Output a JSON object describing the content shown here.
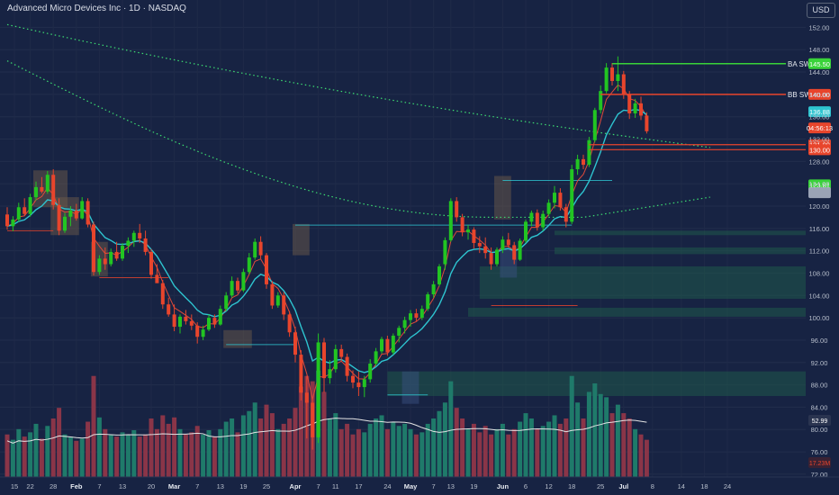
{
  "header": {
    "symbol_title": "Advanced Micro Devices Inc · 1D · NASDAQ",
    "currency_label": "USD"
  },
  "chart_data": {
    "type": "candlestick",
    "price_axis": {
      "ticks": [
        "152.00",
        "148.00",
        "144.00",
        "140.00",
        "136.00",
        "132.00",
        "128.00",
        "124.00",
        "120.00",
        "116.00",
        "112.00",
        "108.00",
        "104.00",
        "100.00",
        "96.00",
        "92.00",
        "88.00",
        "84.00",
        "80.00",
        "76.00",
        "72.00"
      ],
      "tick_values": [
        152,
        148,
        144,
        140,
        136,
        132,
        128,
        124,
        120,
        116,
        112,
        108,
        104,
        100,
        96,
        92,
        88,
        84,
        80,
        76,
        72
      ],
      "range": [
        71.5,
        154
      ]
    },
    "date_axis": {
      "labels": [
        "15",
        "22",
        "28",
        "Feb",
        "7",
        "13",
        "20",
        "Mar",
        "7",
        "13",
        "19",
        "25",
        "Apr",
        "7",
        "11",
        "17",
        "24",
        "May",
        "7",
        "13",
        "19",
        "Jun",
        "6",
        "12",
        "18",
        "25",
        "Jul",
        "8",
        "14",
        "18",
        "24"
      ],
      "label_bar_index": [
        -1,
        4,
        8,
        12,
        16,
        20,
        25,
        29,
        33,
        37,
        41,
        45,
        50,
        54,
        57,
        61,
        66,
        70,
        74,
        77,
        81,
        86,
        90,
        94,
        98,
        103,
        107,
        112,
        117,
        121,
        125
      ],
      "bold_labels": [
        "Feb",
        "Mar",
        "Apr",
        "May",
        "Jun",
        "Jul"
      ]
    },
    "candles": {
      "fields": [
        "open",
        "high",
        "low",
        "close",
        "volume_millions"
      ],
      "bars": [
        [
          118.5,
          119.8,
          115.8,
          116.4,
          40
        ],
        [
          116.4,
          118.2,
          115.5,
          117.6,
          35
        ],
        [
          117.6,
          120.6,
          117.2,
          119.8,
          45
        ],
        [
          119.8,
          121.4,
          118.2,
          118.6,
          38
        ],
        [
          118.6,
          122.2,
          118.1,
          121.6,
          42
        ],
        [
          121.6,
          124.4,
          121.0,
          123.4,
          50
        ],
        [
          123.4,
          125.2,
          122.3,
          122.6,
          36
        ],
        [
          122.6,
          126.3,
          122.2,
          125.6,
          48
        ],
        [
          125.6,
          126.6,
          119.4,
          120.2,
          55
        ],
        [
          120.2,
          121.4,
          114.8,
          115.6,
          65
        ],
        [
          115.6,
          118.8,
          115.2,
          118.1,
          40
        ],
        [
          118.1,
          120.0,
          116.4,
          119.2,
          38
        ],
        [
          119.2,
          120.4,
          117.4,
          117.8,
          34
        ],
        [
          117.8,
          121.6,
          117.6,
          120.9,
          36
        ],
        [
          120.9,
          121.4,
          116.2,
          116.7,
          52
        ],
        [
          116.7,
          117.2,
          107.6,
          108.2,
          95
        ],
        [
          108.2,
          111.2,
          107.7,
          110.6,
          56
        ],
        [
          110.6,
          112.6,
          108.6,
          109.6,
          45
        ],
        [
          109.6,
          112.4,
          109.2,
          111.8,
          40
        ],
        [
          111.8,
          113.6,
          110.2,
          110.6,
          38
        ],
        [
          110.6,
          113.4,
          110.2,
          112.9,
          42
        ],
        [
          112.9,
          114.4,
          111.6,
          113.8,
          40
        ],
        [
          113.8,
          115.6,
          112.7,
          115.2,
          44
        ],
        [
          115.2,
          116.8,
          113.4,
          114.2,
          38
        ],
        [
          114.2,
          115.6,
          111.2,
          111.8,
          40
        ],
        [
          111.8,
          112.3,
          107.0,
          107.7,
          55
        ],
        [
          107.7,
          109.6,
          106.4,
          106.2,
          45
        ],
        [
          106.2,
          106.8,
          101.6,
          102.4,
          58
        ],
        [
          102.4,
          103.6,
          100.2,
          100.6,
          50
        ],
        [
          100.6,
          102.4,
          97.6,
          98.4,
          56
        ],
        [
          98.4,
          100.6,
          97.2,
          100.2,
          45
        ],
        [
          100.2,
          101.4,
          98.8,
          99.4,
          40
        ],
        [
          99.4,
          100.6,
          97.8,
          98.6,
          42
        ],
        [
          98.6,
          99.2,
          95.4,
          96.6,
          48
        ],
        [
          96.6,
          98.6,
          96.0,
          97.9,
          40
        ],
        [
          97.9,
          100.6,
          97.6,
          100.0,
          44
        ],
        [
          100.0,
          100.6,
          98.2,
          98.8,
          38
        ],
        [
          98.8,
          102.2,
          98.6,
          101.6,
          45
        ],
        [
          101.6,
          104.6,
          101.2,
          104.0,
          52
        ],
        [
          104.0,
          107.4,
          103.6,
          106.6,
          55
        ],
        [
          106.6,
          107.2,
          104.4,
          104.9,
          42
        ],
        [
          104.9,
          108.8,
          104.6,
          108.2,
          58
        ],
        [
          108.2,
          111.6,
          107.8,
          110.8,
          62
        ],
        [
          110.8,
          114.2,
          110.4,
          113.6,
          70
        ],
        [
          113.6,
          114.6,
          110.6,
          111.2,
          55
        ],
        [
          111.2,
          111.6,
          105.2,
          106.0,
          68
        ],
        [
          106.0,
          106.6,
          101.6,
          102.2,
          60
        ],
        [
          102.2,
          104.6,
          101.8,
          104.0,
          45
        ],
        [
          104.0,
          104.6,
          99.6,
          100.6,
          50
        ],
        [
          100.6,
          101.2,
          96.6,
          97.4,
          55
        ],
        [
          97.4,
          98.4,
          92.0,
          93.4,
          65
        ],
        [
          93.4,
          94.2,
          85.2,
          86.6,
          85
        ],
        [
          86.6,
          89.6,
          78.4,
          84.8,
          95
        ],
        [
          84.8,
          85.6,
          76.4,
          78.6,
          90
        ],
        [
          78.6,
          97.2,
          77.6,
          95.6,
          100
        ],
        [
          95.6,
          96.4,
          86.6,
          89.2,
          80
        ],
        [
          89.2,
          92.4,
          88.2,
          90.8,
          55
        ],
        [
          90.8,
          95.2,
          90.2,
          94.4,
          60
        ],
        [
          94.4,
          95.2,
          92.2,
          93.0,
          45
        ],
        [
          93.0,
          93.6,
          88.6,
          89.6,
          50
        ],
        [
          89.6,
          90.6,
          87.4,
          88.4,
          40
        ],
        [
          88.4,
          90.4,
          86.0,
          87.6,
          45
        ],
        [
          87.6,
          89.6,
          85.8,
          89.0,
          42
        ],
        [
          89.0,
          92.6,
          88.4,
          91.8,
          50
        ],
        [
          91.8,
          94.6,
          91.4,
          94.0,
          55
        ],
        [
          94.0,
          96.6,
          93.6,
          96.2,
          58
        ],
        [
          96.2,
          96.8,
          93.2,
          93.8,
          45
        ],
        [
          93.8,
          97.2,
          93.4,
          96.8,
          52
        ],
        [
          96.8,
          98.6,
          95.6,
          98.2,
          48
        ],
        [
          98.2,
          100.2,
          97.2,
          99.6,
          50
        ],
        [
          99.6,
          101.4,
          98.4,
          100.8,
          45
        ],
        [
          100.8,
          101.6,
          99.4,
          100.0,
          40
        ],
        [
          100.0,
          102.2,
          99.6,
          101.6,
          42
        ],
        [
          101.6,
          104.6,
          101.2,
          104.2,
          50
        ],
        [
          104.2,
          106.6,
          103.6,
          106.0,
          55
        ],
        [
          106.0,
          109.6,
          105.6,
          109.2,
          62
        ],
        [
          109.6,
          114.4,
          108.6,
          113.9,
          70
        ],
        [
          113.9,
          121.4,
          113.6,
          120.9,
          90
        ],
        [
          120.9,
          121.6,
          117.2,
          118.0,
          65
        ],
        [
          118.0,
          118.6,
          114.6,
          115.3,
          55
        ],
        [
          115.3,
          116.6,
          114.0,
          115.8,
          45
        ],
        [
          115.8,
          116.2,
          112.4,
          113.4,
          50
        ],
        [
          113.4,
          114.6,
          111.6,
          112.8,
          42
        ],
        [
          112.8,
          114.4,
          110.6,
          111.6,
          48
        ],
        [
          111.6,
          112.6,
          108.6,
          109.6,
          40
        ],
        [
          109.6,
          112.6,
          109.2,
          112.2,
          45
        ],
        [
          112.2,
          114.6,
          111.6,
          114.0,
          50
        ],
        [
          114.0,
          115.2,
          112.6,
          113.0,
          40
        ],
        [
          113.0,
          113.6,
          109.6,
          110.4,
          45
        ],
        [
          110.4,
          114.2,
          110.2,
          113.8,
          52
        ],
        [
          113.8,
          117.6,
          113.4,
          117.2,
          60
        ],
        [
          117.2,
          119.2,
          116.4,
          118.8,
          55
        ],
        [
          118.8,
          119.4,
          115.6,
          116.2,
          45
        ],
        [
          116.2,
          119.2,
          115.6,
          118.6,
          48
        ],
        [
          118.6,
          121.2,
          118.2,
          120.6,
          52
        ],
        [
          120.6,
          123.6,
          119.6,
          122.4,
          58
        ],
        [
          122.4,
          123.2,
          119.2,
          119.8,
          50
        ],
        [
          119.8,
          120.4,
          116.2,
          117.2,
          55
        ],
        [
          117.2,
          127.4,
          116.8,
          126.6,
          95
        ],
        [
          126.6,
          129.2,
          125.6,
          128.4,
          70
        ],
        [
          128.4,
          129.2,
          126.6,
          127.4,
          55
        ],
        [
          127.4,
          132.4,
          127.0,
          131.8,
          80
        ],
        [
          131.8,
          137.6,
          131.4,
          137.2,
          88
        ],
        [
          137.2,
          141.6,
          136.6,
          140.6,
          78
        ],
        [
          140.6,
          145.6,
          140.2,
          144.8,
          75
        ],
        [
          144.8,
          145.6,
          141.6,
          142.4,
          60
        ],
        [
          142.4,
          146.8,
          140.6,
          143.6,
          68
        ],
        [
          143.6,
          144.2,
          139.2,
          140.0,
          60
        ],
        [
          140.0,
          140.6,
          135.6,
          136.6,
          55
        ],
        [
          136.6,
          139.2,
          135.8,
          138.4,
          45
        ],
        [
          138.4,
          139.6,
          135.4,
          136.2,
          40
        ],
        [
          136.2,
          136.8,
          133.0,
          133.4,
          35
        ]
      ],
      "up_color": "#22c522",
      "down_color": "#e8452c"
    },
    "series": [
      {
        "name": "EMA fast",
        "color": "#e04a3a"
      },
      {
        "name": "EMA slow",
        "color": "#2ec4d0"
      },
      {
        "name": "MA 100",
        "color": "#3ddc72"
      },
      {
        "name": "MA 200",
        "color": "#3ddc72"
      },
      {
        "name": "Volume MA",
        "color": "#e4e4e4"
      }
    ],
    "levels": [
      {
        "label": "BA SW",
        "badge": "145.50",
        "price": 145.5,
        "color": "#39d339",
        "from_bar": 105
      },
      {
        "label": "BB SW",
        "badge": "140.00",
        "price": 140.0,
        "color": "#e8452c",
        "from_bar": 103
      },
      {
        "label": "",
        "badge": "136.88",
        "price": 136.9,
        "color": "#2ec4d0",
        "from_bar": 110
      },
      {
        "label": "",
        "badge": "04:56:13",
        "price": 134.0,
        "color": "#e8452c",
        "from_bar": 110
      },
      {
        "label": "",
        "badge": "131.00",
        "price": 131.0,
        "color": "#e8452c",
        "from_bar": 101
      },
      {
        "label": "",
        "badge": "130.00",
        "price": 130.1,
        "color": "#e8452c",
        "from_bar": 101
      },
      {
        "label": "",
        "badge": "123.81",
        "price": 123.8,
        "color": "#39d339",
        "from_bar": 110
      },
      {
        "label": "",
        "badge": "",
        "price": 122.4,
        "color": "#9aa3b5",
        "from_bar": 110
      }
    ],
    "volume_badges": [
      {
        "text": "52.99",
        "color": "#ffffff",
        "bg": "#2a3450"
      },
      {
        "text": "17.23M",
        "color": "#e8452c",
        "bg": "#3a2233"
      }
    ],
    "grid": true
  }
}
